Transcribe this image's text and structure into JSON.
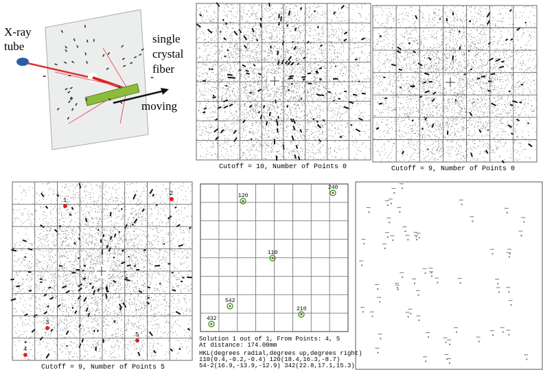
{
  "panel_a": {
    "source_lines": [
      "X-ray",
      "tube"
    ],
    "fiber_lines": [
      "single",
      "crystal",
      "fiber"
    ],
    "motion_label": "moving"
  },
  "panel_b": {
    "caption": "Cutoff = 10, Number of Points 0"
  },
  "panel_c": {
    "caption": "Cutoff =  9, Number of Points 0"
  },
  "panel_d": {
    "caption": "Cutoff =  9, Number of Points 5",
    "points": [
      "1",
      "2",
      "3",
      "4",
      "5"
    ]
  },
  "panel_e": {
    "reflections": [
      "120",
      "240",
      "110",
      "542",
      "210",
      "432"
    ],
    "info_lines": [
      "Solution 1 out of 1, From Points: 4, 5",
      "At distance: 174.00mm",
      "HKL(degrees radial,degrees up,degrees right)",
      "110(0.4,-0.2,-0.4)   120(18.4,16.3,-8.7)",
      "54-2(16.9,-13.9,-12.9) 342(22.8,17.1,15.3)"
    ]
  }
}
